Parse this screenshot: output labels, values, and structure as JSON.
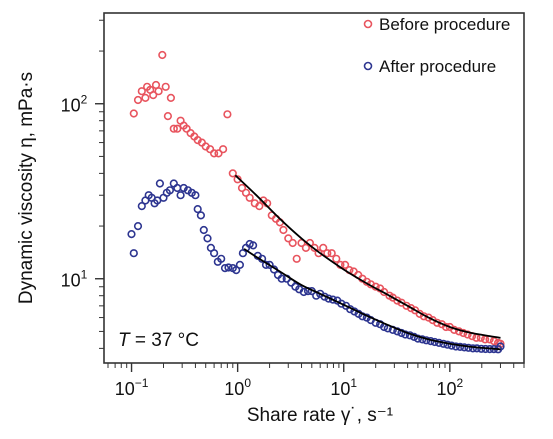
{
  "chart_data": {
    "type": "scatter",
    "xlabel": "Share rate γ˙, s⁻¹",
    "ylabel": "Dynamic viscosity η, mPa·s",
    "xscale": "log",
    "yscale": "log",
    "xlim": [
      0.055,
      500
    ],
    "ylim": [
      3.3,
      330
    ],
    "xticks": [
      {
        "value": 0.1,
        "base": "10",
        "exp": "−1"
      },
      {
        "value": 1,
        "base": "10",
        "exp": "0"
      },
      {
        "value": 10,
        "base": "10",
        "exp": "1"
      },
      {
        "value": 100,
        "base": "10",
        "exp": "2"
      }
    ],
    "yticks": [
      {
        "value": 10,
        "base": "10",
        "exp": "1"
      },
      {
        "value": 100,
        "base": "10",
        "exp": "2"
      }
    ],
    "grid": false,
    "legend_position": "top-right",
    "annotation": {
      "var": "T",
      "text": " = 37 °C"
    },
    "series": [
      {
        "name": "Before procedure",
        "color": "#e8545e",
        "marker": "open-circle",
        "points": [
          [
            0.105,
            88
          ],
          [
            0.115,
            105
          ],
          [
            0.125,
            118
          ],
          [
            0.135,
            108
          ],
          [
            0.14,
            125
          ],
          [
            0.15,
            120
          ],
          [
            0.16,
            112
          ],
          [
            0.17,
            128
          ],
          [
            0.18,
            118
          ],
          [
            0.195,
            190
          ],
          [
            0.21,
            125
          ],
          [
            0.22,
            85
          ],
          [
            0.235,
            108
          ],
          [
            0.25,
            72
          ],
          [
            0.27,
            72
          ],
          [
            0.29,
            80
          ],
          [
            0.31,
            75
          ],
          [
            0.33,
            72
          ],
          [
            0.36,
            68
          ],
          [
            0.39,
            65
          ],
          [
            0.42,
            62
          ],
          [
            0.46,
            60
          ],
          [
            0.5,
            57
          ],
          [
            0.55,
            55
          ],
          [
            0.6,
            52
          ],
          [
            0.66,
            52
          ],
          [
            0.73,
            55
          ],
          [
            0.8,
            87
          ],
          [
            0.9,
            40
          ],
          [
            1.0,
            37
          ],
          [
            1.1,
            33
          ],
          [
            1.2,
            31
          ],
          [
            1.3,
            29
          ],
          [
            1.45,
            27
          ],
          [
            1.6,
            26
          ],
          [
            1.75,
            28
          ],
          [
            1.9,
            27
          ],
          [
            2.1,
            23
          ],
          [
            2.3,
            22
          ],
          [
            2.5,
            21
          ],
          [
            2.7,
            19
          ],
          [
            3.0,
            17
          ],
          [
            3.3,
            16
          ],
          [
            3.6,
            13
          ],
          [
            4.0,
            16
          ],
          [
            4.4,
            15
          ],
          [
            4.8,
            16
          ],
          [
            5.3,
            15
          ],
          [
            5.8,
            14
          ],
          [
            6.4,
            15
          ],
          [
            7.0,
            14
          ],
          [
            7.7,
            14
          ],
          [
            8.5,
            13
          ],
          [
            9.3,
            12
          ],
          [
            10.3,
            12
          ],
          [
            11.3,
            11.2
          ],
          [
            12.4,
            11
          ],
          [
            13.7,
            10.5
          ],
          [
            15,
            10
          ],
          [
            16.5,
            9.6
          ],
          [
            18,
            9.3
          ],
          [
            20,
            9.0
          ],
          [
            22,
            8.8
          ],
          [
            24,
            8.4
          ],
          [
            27,
            8.0
          ],
          [
            29,
            7.8
          ],
          [
            32,
            7.5
          ],
          [
            35,
            7.3
          ],
          [
            39,
            7.0
          ],
          [
            43,
            6.8
          ],
          [
            47,
            6.6
          ],
          [
            52,
            6.3
          ],
          [
            57,
            6.1
          ],
          [
            63,
            6.0
          ],
          [
            69,
            5.8
          ],
          [
            76,
            5.6
          ],
          [
            84,
            5.5
          ],
          [
            92,
            5.3
          ],
          [
            100,
            5.3
          ],
          [
            110,
            5.1
          ],
          [
            122,
            5.0
          ],
          [
            134,
            4.9
          ],
          [
            147,
            4.8
          ],
          [
            162,
            4.7
          ],
          [
            178,
            4.6
          ],
          [
            196,
            4.6
          ],
          [
            215,
            4.5
          ],
          [
            237,
            4.5
          ],
          [
            260,
            4.4
          ],
          [
            285,
            4.3
          ],
          [
            300,
            4.25
          ]
        ]
      },
      {
        "name": "After procedure",
        "color": "#2d3590",
        "marker": "open-circle",
        "points": [
          [
            0.1,
            18
          ],
          [
            0.105,
            14
          ],
          [
            0.115,
            20
          ],
          [
            0.125,
            26
          ],
          [
            0.135,
            28
          ],
          [
            0.145,
            30
          ],
          [
            0.155,
            29
          ],
          [
            0.165,
            27
          ],
          [
            0.175,
            28
          ],
          [
            0.185,
            35
          ],
          [
            0.2,
            29
          ],
          [
            0.215,
            31
          ],
          [
            0.23,
            32
          ],
          [
            0.25,
            35
          ],
          [
            0.27,
            33
          ],
          [
            0.29,
            30
          ],
          [
            0.31,
            33
          ],
          [
            0.34,
            32
          ],
          [
            0.37,
            31
          ],
          [
            0.4,
            30
          ],
          [
            0.42,
            25
          ],
          [
            0.45,
            23
          ],
          [
            0.48,
            19
          ],
          [
            0.52,
            17
          ],
          [
            0.56,
            15
          ],
          [
            0.6,
            14
          ],
          [
            0.65,
            12.5
          ],
          [
            0.7,
            13
          ],
          [
            0.76,
            11.5
          ],
          [
            0.82,
            11.6
          ],
          [
            0.9,
            11.5
          ],
          [
            0.97,
            11.2
          ],
          [
            1.05,
            12
          ],
          [
            1.12,
            14
          ],
          [
            1.2,
            15
          ],
          [
            1.3,
            15.8
          ],
          [
            1.4,
            15.5
          ],
          [
            1.55,
            13.5
          ],
          [
            1.7,
            13
          ],
          [
            1.85,
            12
          ],
          [
            2.0,
            12
          ],
          [
            2.2,
            11.3
          ],
          [
            2.4,
            10.5
          ],
          [
            2.6,
            10
          ],
          [
            2.9,
            10
          ],
          [
            3.2,
            9.5
          ],
          [
            3.5,
            9
          ],
          [
            3.8,
            8.7
          ],
          [
            4.2,
            8.4
          ],
          [
            4.6,
            8.5
          ],
          [
            5.0,
            8.5
          ],
          [
            5.5,
            8.0
          ],
          [
            6.0,
            8.2
          ],
          [
            6.6,
            7.9
          ],
          [
            7.2,
            7.7
          ],
          [
            7.9,
            7.6
          ],
          [
            8.7,
            7.5
          ],
          [
            9.5,
            7.2
          ],
          [
            10.5,
            7.0
          ],
          [
            11.5,
            6.7
          ],
          [
            12.6,
            6.5
          ],
          [
            13.8,
            6.3
          ],
          [
            15,
            6.1
          ],
          [
            16.5,
            6.0
          ],
          [
            18,
            5.8
          ],
          [
            20,
            5.6
          ],
          [
            22,
            5.5
          ],
          [
            24,
            5.3
          ],
          [
            26,
            5.2
          ],
          [
            29,
            5.1
          ],
          [
            32,
            5.0
          ],
          [
            35,
            4.9
          ],
          [
            38,
            4.8
          ],
          [
            42,
            4.75
          ],
          [
            46,
            4.65
          ],
          [
            50,
            4.55
          ],
          [
            55,
            4.5
          ],
          [
            60,
            4.45
          ],
          [
            66,
            4.4
          ],
          [
            72,
            4.35
          ],
          [
            79,
            4.3
          ],
          [
            87,
            4.25
          ],
          [
            95,
            4.2
          ],
          [
            104,
            4.15
          ],
          [
            114,
            4.1
          ],
          [
            125,
            4.08
          ],
          [
            137,
            4.05
          ],
          [
            150,
            4.03
          ],
          [
            165,
            4.0
          ],
          [
            180,
            4.0
          ],
          [
            198,
            3.98
          ],
          [
            217,
            3.97
          ],
          [
            238,
            3.96
          ],
          [
            260,
            3.96
          ],
          [
            285,
            3.95
          ],
          [
            300,
            4.1
          ]
        ]
      }
    ],
    "fits": [
      {
        "series": "Before procedure",
        "color": "#000000",
        "points": [
          [
            0.95,
            39
          ],
          [
            1.5,
            30
          ],
          [
            2.5,
            22
          ],
          [
            4,
            17
          ],
          [
            6,
            14
          ],
          [
            10,
            11.3
          ],
          [
            16,
            9.5
          ],
          [
            25,
            8.2
          ],
          [
            40,
            7.0
          ],
          [
            63,
            6.0
          ],
          [
            100,
            5.3
          ],
          [
            160,
            4.9
          ],
          [
            300,
            4.6
          ]
        ]
      },
      {
        "series": "After procedure",
        "color": "#000000",
        "points": [
          [
            1.15,
            14.8
          ],
          [
            1.6,
            13
          ],
          [
            2.5,
            11
          ],
          [
            4,
            9.2
          ],
          [
            6,
            8.2
          ],
          [
            10,
            7.1
          ],
          [
            16,
            6.2
          ],
          [
            25,
            5.5
          ],
          [
            40,
            4.9
          ],
          [
            63,
            4.5
          ],
          [
            100,
            4.25
          ],
          [
            160,
            4.08
          ],
          [
            300,
            3.95
          ]
        ]
      }
    ]
  }
}
